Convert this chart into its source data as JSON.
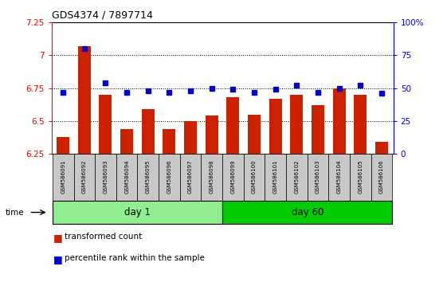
{
  "title": "GDS4374 / 7897714",
  "samples": [
    "GSM586091",
    "GSM586092",
    "GSM586093",
    "GSM586094",
    "GSM586095",
    "GSM586096",
    "GSM586097",
    "GSM586098",
    "GSM586099",
    "GSM586100",
    "GSM586101",
    "GSM586102",
    "GSM586103",
    "GSM586104",
    "GSM586105",
    "GSM586106"
  ],
  "bar_values": [
    6.38,
    7.07,
    6.7,
    6.44,
    6.59,
    6.44,
    6.5,
    6.54,
    6.68,
    6.55,
    6.67,
    6.7,
    6.62,
    6.75,
    6.7,
    6.34
  ],
  "blue_values": [
    47,
    80,
    54,
    47,
    48,
    47,
    48,
    50,
    49,
    47,
    49,
    52,
    47,
    50,
    52,
    46
  ],
  "bar_color": "#cc2200",
  "blue_color": "#0000cc",
  "ylim_left": [
    6.25,
    7.25
  ],
  "ylim_right": [
    0,
    100
  ],
  "yticks_left": [
    6.25,
    6.5,
    6.75,
    7.0,
    7.25
  ],
  "yticks_right": [
    0,
    25,
    50,
    75,
    100
  ],
  "ytick_labels_left": [
    "6.25",
    "6.5",
    "6.75",
    "7",
    "7.25"
  ],
  "ytick_labels_right": [
    "0",
    "25",
    "50",
    "75",
    "100%"
  ],
  "dotted_lines": [
    6.5,
    6.75,
    7.0
  ],
  "day1_color": "#90ee90",
  "day60_color": "#00cc00",
  "groups": [
    {
      "label": "day 1",
      "start": 0,
      "end": 8
    },
    {
      "label": "day 60",
      "start": 8,
      "end": 16
    }
  ],
  "legend_red_label": "transformed count",
  "legend_blue_label": "percentile rank within the sample"
}
